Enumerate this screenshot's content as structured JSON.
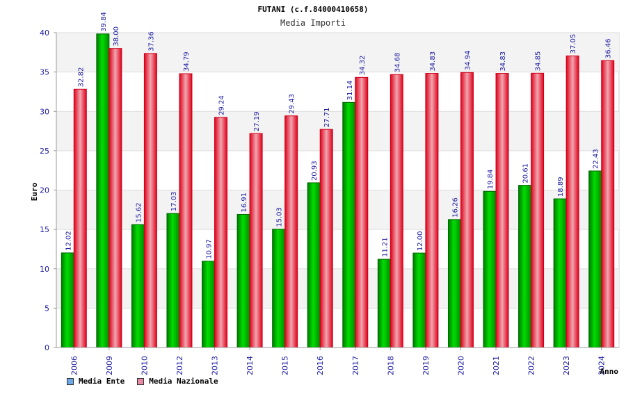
{
  "chart_data": {
    "type": "bar",
    "title": "FUTANI (c.f.84000410658)",
    "subtitle": "Media Importi",
    "xlabel": "Anno",
    "ylabel": "Euro",
    "ylim": [
      0,
      40
    ],
    "yticks": [
      "0",
      "5",
      "10",
      "15",
      "20",
      "25",
      "30",
      "35",
      "40"
    ],
    "categories": [
      "2006",
      "2009",
      "2010",
      "2012",
      "2013",
      "2014",
      "2015",
      "2016",
      "2017",
      "2018",
      "2019",
      "2020",
      "2021",
      "2022",
      "2023",
      "2024"
    ],
    "series": [
      {
        "name": "Media Ente",
        "color": "#00b000",
        "values": [
          12.02,
          39.84,
          15.62,
          17.03,
          10.97,
          16.91,
          15.03,
          20.93,
          31.14,
          11.21,
          12.0,
          16.26,
          19.84,
          20.61,
          18.89,
          22.43
        ],
        "labels": [
          "12.02",
          "39.84",
          "15.62",
          "17.03",
          "10.97",
          "16.91",
          "15.03",
          "20.93",
          "31.14",
          "11.21",
          "12.00",
          "16.26",
          "19.84",
          "20.61",
          "18.89",
          "22.43"
        ]
      },
      {
        "name": "Media Nazionale",
        "color": "#ee1122",
        "values": [
          32.82,
          38.0,
          37.36,
          34.79,
          29.24,
          27.19,
          29.43,
          27.71,
          34.32,
          34.68,
          34.83,
          34.94,
          34.83,
          34.85,
          37.05,
          36.46
        ],
        "labels": [
          "32.82",
          "38.00",
          "37.36",
          "34.79",
          "29.24",
          "27.19",
          "29.43",
          "27.71",
          "34.32",
          "34.68",
          "34.83",
          "34.94",
          "34.83",
          "34.85",
          "37.05",
          "36.46"
        ]
      }
    ],
    "legend": [
      {
        "label": "Media Ente",
        "color": "#6aa7e8"
      },
      {
        "label": "Media Nazionale",
        "color": "#e88aa6"
      }
    ]
  }
}
